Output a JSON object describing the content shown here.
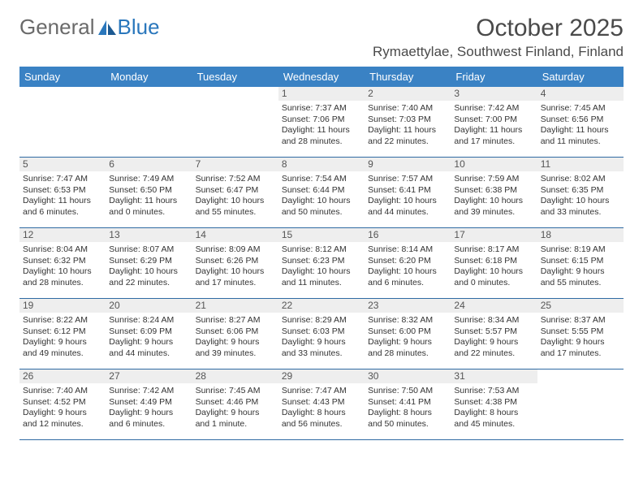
{
  "brand": {
    "word1": "General",
    "word2": "Blue"
  },
  "title": "October 2025",
  "location": "Rymaettylae, Southwest Finland, Finland",
  "colors": {
    "header_bg": "#3a82c4",
    "header_text": "#ffffff",
    "daynum_bg": "#eeeeee",
    "row_border": "#2f6aa3",
    "brand_gray": "#6a6a6a",
    "brand_blue": "#2a77bc"
  },
  "weekdays": [
    "Sunday",
    "Monday",
    "Tuesday",
    "Wednesday",
    "Thursday",
    "Friday",
    "Saturday"
  ],
  "weeks": [
    [
      {
        "n": "",
        "empty": true
      },
      {
        "n": "",
        "empty": true
      },
      {
        "n": "",
        "empty": true
      },
      {
        "n": "1",
        "sr": "Sunrise: 7:37 AM",
        "ss": "Sunset: 7:06 PM",
        "d1": "Daylight: 11 hours",
        "d2": "and 28 minutes."
      },
      {
        "n": "2",
        "sr": "Sunrise: 7:40 AM",
        "ss": "Sunset: 7:03 PM",
        "d1": "Daylight: 11 hours",
        "d2": "and 22 minutes."
      },
      {
        "n": "3",
        "sr": "Sunrise: 7:42 AM",
        "ss": "Sunset: 7:00 PM",
        "d1": "Daylight: 11 hours",
        "d2": "and 17 minutes."
      },
      {
        "n": "4",
        "sr": "Sunrise: 7:45 AM",
        "ss": "Sunset: 6:56 PM",
        "d1": "Daylight: 11 hours",
        "d2": "and 11 minutes."
      }
    ],
    [
      {
        "n": "5",
        "sr": "Sunrise: 7:47 AM",
        "ss": "Sunset: 6:53 PM",
        "d1": "Daylight: 11 hours",
        "d2": "and 6 minutes."
      },
      {
        "n": "6",
        "sr": "Sunrise: 7:49 AM",
        "ss": "Sunset: 6:50 PM",
        "d1": "Daylight: 11 hours",
        "d2": "and 0 minutes."
      },
      {
        "n": "7",
        "sr": "Sunrise: 7:52 AM",
        "ss": "Sunset: 6:47 PM",
        "d1": "Daylight: 10 hours",
        "d2": "and 55 minutes."
      },
      {
        "n": "8",
        "sr": "Sunrise: 7:54 AM",
        "ss": "Sunset: 6:44 PM",
        "d1": "Daylight: 10 hours",
        "d2": "and 50 minutes."
      },
      {
        "n": "9",
        "sr": "Sunrise: 7:57 AM",
        "ss": "Sunset: 6:41 PM",
        "d1": "Daylight: 10 hours",
        "d2": "and 44 minutes."
      },
      {
        "n": "10",
        "sr": "Sunrise: 7:59 AM",
        "ss": "Sunset: 6:38 PM",
        "d1": "Daylight: 10 hours",
        "d2": "and 39 minutes."
      },
      {
        "n": "11",
        "sr": "Sunrise: 8:02 AM",
        "ss": "Sunset: 6:35 PM",
        "d1": "Daylight: 10 hours",
        "d2": "and 33 minutes."
      }
    ],
    [
      {
        "n": "12",
        "sr": "Sunrise: 8:04 AM",
        "ss": "Sunset: 6:32 PM",
        "d1": "Daylight: 10 hours",
        "d2": "and 28 minutes."
      },
      {
        "n": "13",
        "sr": "Sunrise: 8:07 AM",
        "ss": "Sunset: 6:29 PM",
        "d1": "Daylight: 10 hours",
        "d2": "and 22 minutes."
      },
      {
        "n": "14",
        "sr": "Sunrise: 8:09 AM",
        "ss": "Sunset: 6:26 PM",
        "d1": "Daylight: 10 hours",
        "d2": "and 17 minutes."
      },
      {
        "n": "15",
        "sr": "Sunrise: 8:12 AM",
        "ss": "Sunset: 6:23 PM",
        "d1": "Daylight: 10 hours",
        "d2": "and 11 minutes."
      },
      {
        "n": "16",
        "sr": "Sunrise: 8:14 AM",
        "ss": "Sunset: 6:20 PM",
        "d1": "Daylight: 10 hours",
        "d2": "and 6 minutes."
      },
      {
        "n": "17",
        "sr": "Sunrise: 8:17 AM",
        "ss": "Sunset: 6:18 PM",
        "d1": "Daylight: 10 hours",
        "d2": "and 0 minutes."
      },
      {
        "n": "18",
        "sr": "Sunrise: 8:19 AM",
        "ss": "Sunset: 6:15 PM",
        "d1": "Daylight: 9 hours",
        "d2": "and 55 minutes."
      }
    ],
    [
      {
        "n": "19",
        "sr": "Sunrise: 8:22 AM",
        "ss": "Sunset: 6:12 PM",
        "d1": "Daylight: 9 hours",
        "d2": "and 49 minutes."
      },
      {
        "n": "20",
        "sr": "Sunrise: 8:24 AM",
        "ss": "Sunset: 6:09 PM",
        "d1": "Daylight: 9 hours",
        "d2": "and 44 minutes."
      },
      {
        "n": "21",
        "sr": "Sunrise: 8:27 AM",
        "ss": "Sunset: 6:06 PM",
        "d1": "Daylight: 9 hours",
        "d2": "and 39 minutes."
      },
      {
        "n": "22",
        "sr": "Sunrise: 8:29 AM",
        "ss": "Sunset: 6:03 PM",
        "d1": "Daylight: 9 hours",
        "d2": "and 33 minutes."
      },
      {
        "n": "23",
        "sr": "Sunrise: 8:32 AM",
        "ss": "Sunset: 6:00 PM",
        "d1": "Daylight: 9 hours",
        "d2": "and 28 minutes."
      },
      {
        "n": "24",
        "sr": "Sunrise: 8:34 AM",
        "ss": "Sunset: 5:57 PM",
        "d1": "Daylight: 9 hours",
        "d2": "and 22 minutes."
      },
      {
        "n": "25",
        "sr": "Sunrise: 8:37 AM",
        "ss": "Sunset: 5:55 PM",
        "d1": "Daylight: 9 hours",
        "d2": "and 17 minutes."
      }
    ],
    [
      {
        "n": "26",
        "sr": "Sunrise: 7:40 AM",
        "ss": "Sunset: 4:52 PM",
        "d1": "Daylight: 9 hours",
        "d2": "and 12 minutes."
      },
      {
        "n": "27",
        "sr": "Sunrise: 7:42 AM",
        "ss": "Sunset: 4:49 PM",
        "d1": "Daylight: 9 hours",
        "d2": "and 6 minutes."
      },
      {
        "n": "28",
        "sr": "Sunrise: 7:45 AM",
        "ss": "Sunset: 4:46 PM",
        "d1": "Daylight: 9 hours",
        "d2": "and 1 minute."
      },
      {
        "n": "29",
        "sr": "Sunrise: 7:47 AM",
        "ss": "Sunset: 4:43 PM",
        "d1": "Daylight: 8 hours",
        "d2": "and 56 minutes."
      },
      {
        "n": "30",
        "sr": "Sunrise: 7:50 AM",
        "ss": "Sunset: 4:41 PM",
        "d1": "Daylight: 8 hours",
        "d2": "and 50 minutes."
      },
      {
        "n": "31",
        "sr": "Sunrise: 7:53 AM",
        "ss": "Sunset: 4:38 PM",
        "d1": "Daylight: 8 hours",
        "d2": "and 45 minutes."
      },
      {
        "n": "",
        "empty": true
      }
    ]
  ]
}
